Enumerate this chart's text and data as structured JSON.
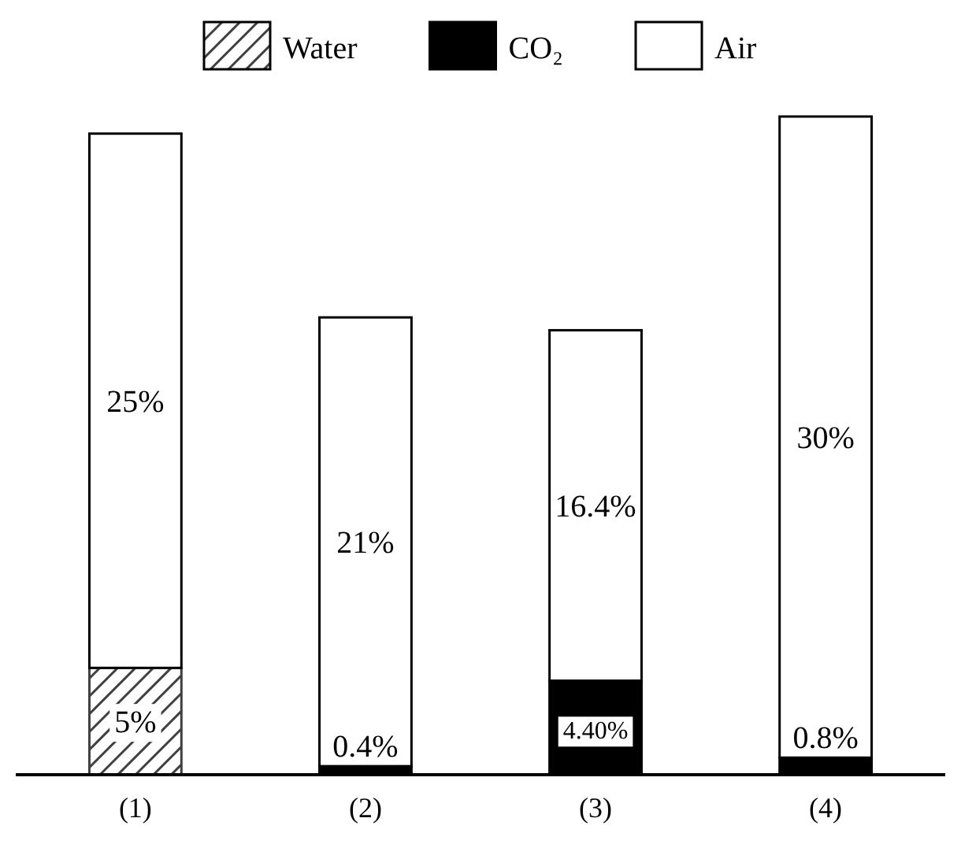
{
  "chart_data": {
    "type": "bar",
    "stacked": true,
    "categories": [
      "(1)",
      "(2)",
      "(3)",
      "(4)"
    ],
    "series": [
      {
        "name": "Water",
        "color": "#404040",
        "values": [
          5,
          null,
          null,
          null
        ],
        "value_labels": [
          "5%",
          null,
          null,
          null
        ]
      },
      {
        "name": "CO₂",
        "color": "#000000",
        "values": [
          null,
          0.4,
          4.4,
          0.8
        ],
        "value_labels": [
          null,
          "0.4%",
          "4.40%",
          "0.8%"
        ]
      },
      {
        "name": "Air",
        "color": "#ffffff",
        "values": [
          25,
          21,
          16.4,
          30
        ],
        "value_labels": [
          "25%",
          "21%",
          "16.4%",
          "30%"
        ]
      }
    ],
    "legend": "top"
  }
}
